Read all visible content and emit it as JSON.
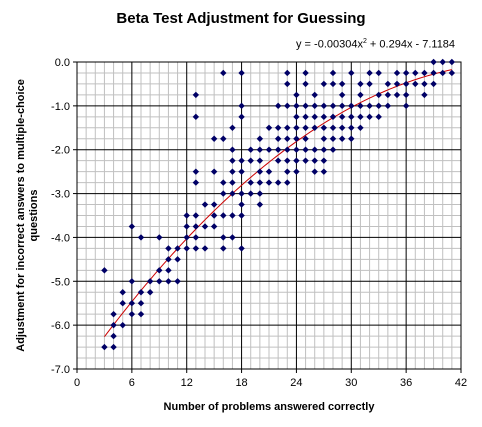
{
  "chart_data": {
    "type": "scatter",
    "title": "Beta Test Adjustment for Guessing",
    "xlabel": "Number of problems answered correctly",
    "ylabel": "Adjustment for incorrect answers to multiple-choice questions",
    "xlim": [
      0,
      42
    ],
    "ylim": [
      -7.0,
      0.0
    ],
    "x_ticks": [
      "0",
      "6",
      "12",
      "18",
      "24",
      "30",
      "36",
      "42"
    ],
    "y_ticks": [
      "0.0",
      "-1.0",
      "-2.0",
      "-3.0",
      "-4.0",
      "-5.0",
      "-6.0",
      "-7.0"
    ],
    "grid": true,
    "trendline": {
      "type": "polynomial",
      "coefficients": [
        -0.00304,
        0.294,
        -7.1184
      ],
      "equation_prefix": "y = -0.00304x",
      "equation_exp": "2",
      "equation_suffix": " + 0.294x - 7.1184",
      "color": "#cc0000"
    },
    "marker_color": "#000066",
    "points": [
      [
        3,
        -4.75
      ],
      [
        3,
        -6.5
      ],
      [
        4,
        -5.75
      ],
      [
        4,
        -6.0
      ],
      [
        4,
        -6.25
      ],
      [
        4,
        -6.5
      ],
      [
        5,
        -5.25
      ],
      [
        5,
        -5.5
      ],
      [
        5,
        -6.0
      ],
      [
        6,
        -3.75
      ],
      [
        6,
        -5.0
      ],
      [
        6,
        -5.5
      ],
      [
        6,
        -5.75
      ],
      [
        7,
        -4.0
      ],
      [
        7,
        -5.25
      ],
      [
        7,
        -5.5
      ],
      [
        7,
        -5.75
      ],
      [
        8,
        -5.0
      ],
      [
        8,
        -5.25
      ],
      [
        9,
        -4.0
      ],
      [
        9,
        -4.75
      ],
      [
        9,
        -5.0
      ],
      [
        10,
        -4.25
      ],
      [
        10,
        -4.5
      ],
      [
        10,
        -4.75
      ],
      [
        10,
        -5.0
      ],
      [
        11,
        -4.25
      ],
      [
        11,
        -4.5
      ],
      [
        11,
        -5.0
      ],
      [
        12,
        -3.5
      ],
      [
        12,
        -3.75
      ],
      [
        12,
        -4.0
      ],
      [
        12,
        -4.25
      ],
      [
        13,
        -0.75
      ],
      [
        13,
        -1.25
      ],
      [
        13,
        -2.5
      ],
      [
        13,
        -2.75
      ],
      [
        13,
        -3.5
      ],
      [
        13,
        -3.75
      ],
      [
        13,
        -4.0
      ],
      [
        13,
        -4.25
      ],
      [
        14,
        -3.25
      ],
      [
        14,
        -3.75
      ],
      [
        14,
        -4.25
      ],
      [
        15,
        -1.75
      ],
      [
        15,
        -2.5
      ],
      [
        15,
        -3.25
      ],
      [
        15,
        -3.5
      ],
      [
        15,
        -3.75
      ],
      [
        16,
        -0.25
      ],
      [
        16,
        -1.75
      ],
      [
        16,
        -2.75
      ],
      [
        16,
        -3.0
      ],
      [
        16,
        -3.5
      ],
      [
        16,
        -4.0
      ],
      [
        16,
        -4.25
      ],
      [
        17,
        -1.5
      ],
      [
        17,
        -2.0
      ],
      [
        17,
        -2.25
      ],
      [
        17,
        -2.5
      ],
      [
        17,
        -2.75
      ],
      [
        17,
        -3.0
      ],
      [
        17,
        -3.5
      ],
      [
        17,
        -4.0
      ],
      [
        18,
        -0.25
      ],
      [
        18,
        -1.0
      ],
      [
        18,
        -1.25
      ],
      [
        18,
        -2.25
      ],
      [
        18,
        -2.5
      ],
      [
        18,
        -3.0
      ],
      [
        18,
        -3.25
      ],
      [
        18,
        -3.5
      ],
      [
        18,
        -4.25
      ],
      [
        19,
        -2.0
      ],
      [
        19,
        -2.25
      ],
      [
        19,
        -2.75
      ],
      [
        19,
        -3.0
      ],
      [
        20,
        -1.75
      ],
      [
        20,
        -2.0
      ],
      [
        20,
        -2.25
      ],
      [
        20,
        -2.5
      ],
      [
        20,
        -2.75
      ],
      [
        20,
        -3.0
      ],
      [
        20,
        -3.25
      ],
      [
        21,
        -1.5
      ],
      [
        21,
        -2.0
      ],
      [
        21,
        -2.5
      ],
      [
        21,
        -2.75
      ],
      [
        22,
        -1.0
      ],
      [
        22,
        -1.5
      ],
      [
        22,
        -1.75
      ],
      [
        22,
        -2.0
      ],
      [
        22,
        -2.25
      ],
      [
        22,
        -2.75
      ],
      [
        23,
        -0.25
      ],
      [
        23,
        -0.5
      ],
      [
        23,
        -1.0
      ],
      [
        23,
        -1.5
      ],
      [
        23,
        -1.75
      ],
      [
        23,
        -2.0
      ],
      [
        23,
        -2.25
      ],
      [
        23,
        -2.5
      ],
      [
        23,
        -2.75
      ],
      [
        24,
        -0.75
      ],
      [
        24,
        -1.0
      ],
      [
        24,
        -1.25
      ],
      [
        24,
        -1.5
      ],
      [
        24,
        -1.75
      ],
      [
        24,
        -2.0
      ],
      [
        24,
        -2.25
      ],
      [
        24,
        -2.5
      ],
      [
        25,
        -0.25
      ],
      [
        25,
        -0.5
      ],
      [
        25,
        -1.0
      ],
      [
        25,
        -1.25
      ],
      [
        25,
        -1.5
      ],
      [
        25,
        -1.75
      ],
      [
        25,
        -2.0
      ],
      [
        25,
        -2.25
      ],
      [
        26,
        -0.75
      ],
      [
        26,
        -1.0
      ],
      [
        26,
        -1.25
      ],
      [
        26,
        -1.5
      ],
      [
        26,
        -2.0
      ],
      [
        26,
        -2.25
      ],
      [
        26,
        -2.5
      ],
      [
        27,
        -0.5
      ],
      [
        27,
        -1.0
      ],
      [
        27,
        -1.25
      ],
      [
        27,
        -1.5
      ],
      [
        27,
        -1.75
      ],
      [
        27,
        -2.0
      ],
      [
        27,
        -2.25
      ],
      [
        27,
        -2.5
      ],
      [
        28,
        -0.25
      ],
      [
        28,
        -0.5
      ],
      [
        28,
        -1.0
      ],
      [
        28,
        -1.25
      ],
      [
        28,
        -1.5
      ],
      [
        28,
        -1.75
      ],
      [
        28,
        -2.0
      ],
      [
        29,
        -0.5
      ],
      [
        29,
        -0.75
      ],
      [
        29,
        -1.0
      ],
      [
        29,
        -1.25
      ],
      [
        29,
        -1.5
      ],
      [
        29,
        -1.75
      ],
      [
        30,
        -0.25
      ],
      [
        30,
        -1.0
      ],
      [
        30,
        -1.25
      ],
      [
        30,
        -1.5
      ],
      [
        30,
        -1.75
      ],
      [
        31,
        -0.5
      ],
      [
        31,
        -0.75
      ],
      [
        31,
        -1.0
      ],
      [
        31,
        -1.25
      ],
      [
        31,
        -1.5
      ],
      [
        32,
        -0.25
      ],
      [
        32,
        -0.5
      ],
      [
        32,
        -1.0
      ],
      [
        32,
        -1.25
      ],
      [
        33,
        -0.25
      ],
      [
        33,
        -0.75
      ],
      [
        33,
        -1.0
      ],
      [
        33,
        -1.25
      ],
      [
        34,
        -0.5
      ],
      [
        34,
        -0.75
      ],
      [
        34,
        -1.0
      ],
      [
        35,
        -0.25
      ],
      [
        35,
        -0.5
      ],
      [
        35,
        -0.75
      ],
      [
        36,
        -0.25
      ],
      [
        36,
        -0.5
      ],
      [
        36,
        -0.75
      ],
      [
        36,
        -1.0
      ],
      [
        37,
        -0.25
      ],
      [
        37,
        -0.5
      ],
      [
        38,
        -0.25
      ],
      [
        38,
        -0.5
      ],
      [
        38,
        -0.75
      ],
      [
        39,
        0.0
      ],
      [
        39,
        -0.25
      ],
      [
        39,
        -0.5
      ],
      [
        40,
        0.0
      ],
      [
        40,
        -0.25
      ],
      [
        41,
        0.0
      ],
      [
        41,
        -0.25
      ]
    ]
  }
}
